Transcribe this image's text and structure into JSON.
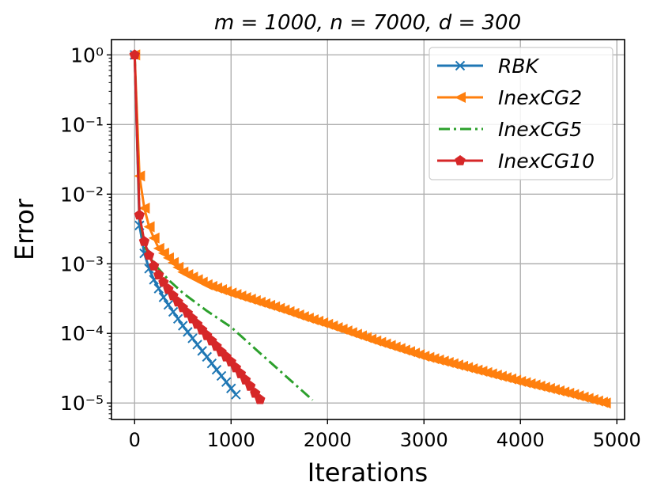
{
  "chart_data": {
    "type": "line",
    "title": "m = 1000, n = 7000, d = 300",
    "xlabel": "Iterations",
    "ylabel": "Error",
    "xlim": [
      -240,
      5080
    ],
    "ylim": [
      5.8e-06,
      1.66
    ],
    "yscale": "log",
    "grid": true,
    "legend_position": "top-right",
    "x_ticks": [
      0,
      1000,
      2000,
      3000,
      4000,
      5000
    ],
    "x_tick_labels": [
      "0",
      "1000",
      "2000",
      "3000",
      "4000",
      "5000"
    ],
    "y_ticks": [
      1,
      0.1,
      0.01,
      0.001,
      0.0001,
      1e-05
    ],
    "y_tick_labels": [
      "10⁰",
      "10⁻¹",
      "10⁻²",
      "10⁻³",
      "10⁻⁴",
      "10⁻⁵"
    ],
    "series": [
      {
        "name": "RBK",
        "color": "#1f77b4",
        "marker": "x",
        "linestyle": "solid",
        "x": [
          0,
          50,
          100,
          150,
          200,
          250,
          300,
          350,
          400,
          450,
          500,
          550,
          600,
          650,
          700,
          750,
          800,
          850,
          900,
          950,
          1000,
          1050
        ],
        "y": [
          1,
          0.00355,
          0.00141,
          0.00085,
          0.00059,
          0.00044,
          0.00033,
          0.000257,
          0.000204,
          0.000162,
          0.000129,
          0.000105,
          8.5e-05,
          6.9e-05,
          5.6e-05,
          4.6e-05,
          3.7e-05,
          3e-05,
          2.45e-05,
          2e-05,
          1.62e-05,
          1.32e-05
        ]
      },
      {
        "name": "InexCG2",
        "color": "#ff7f0e",
        "marker": "triangle-left",
        "linestyle": "solid",
        "x": [
          0,
          50,
          100,
          150,
          200,
          250,
          500,
          750,
          1000,
          1250,
          1500,
          1750,
          2000,
          2500,
          3000,
          3500,
          4000,
          4500,
          4880
        ],
        "y": [
          1,
          0.0182,
          0.0063,
          0.0034,
          0.00234,
          0.00166,
          0.00076,
          0.0005,
          0.00038,
          0.000295,
          0.000229,
          0.000174,
          0.000135,
          7.8e-05,
          4.7e-05,
          3.1e-05,
          2.04e-05,
          1.38e-05,
          1e-05
        ]
      },
      {
        "name": "InexCG5",
        "color": "#2ca02c",
        "marker": "none",
        "linestyle": "dashdot",
        "x": [
          0,
          50,
          100,
          200,
          350,
          500,
          750,
          1000,
          1250,
          1500,
          1845
        ],
        "y": [
          1,
          0.005,
          0.0018,
          0.001,
          0.00059,
          0.00038,
          0.00021,
          0.000123,
          6e-05,
          2.95e-05,
          1.1e-05
        ]
      },
      {
        "name": "InexCG10",
        "color": "#d62728",
        "marker": "pentagon",
        "linestyle": "solid",
        "x": [
          0,
          50,
          100,
          150,
          200,
          250,
          300,
          350,
          400,
          450,
          500,
          550,
          600,
          650,
          700,
          750,
          800,
          850,
          900,
          950,
          1000,
          1050,
          1100,
          1150,
          1200,
          1250,
          1300
        ],
        "y": [
          1,
          0.005,
          0.00209,
          0.00132,
          0.00093,
          0.00069,
          0.00054,
          0.00043,
          0.000347,
          0.000282,
          0.000234,
          0.000195,
          0.000162,
          0.000135,
          0.000112,
          9.3e-05,
          7.8e-05,
          6.5e-05,
          5.4e-05,
          4.6e-05,
          3.9e-05,
          3.2e-05,
          2.63e-05,
          2.14e-05,
          1.74e-05,
          1.38e-05,
          1.12e-05
        ]
      }
    ]
  }
}
